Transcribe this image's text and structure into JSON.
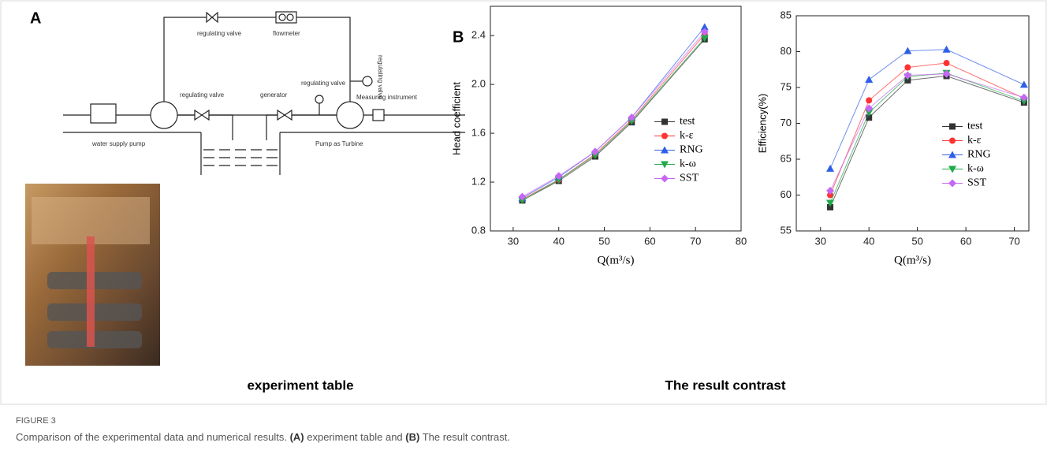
{
  "figure": {
    "panel_a": {
      "letter": "A",
      "labels": [
        "regulating valve",
        "flowmeter",
        "regulating valve",
        "regulating valve",
        "Measuring instrument",
        "regulating valve",
        "generator",
        "water supply pump",
        "Pump as Turbine"
      ],
      "caption": "experiment table"
    },
    "panel_b": {
      "letter": "B",
      "caption": "The result contrast"
    },
    "figure_label": "FIGURE 3",
    "caption": [
      "Comparison of the experimental data and numerical results. ",
      "(A)",
      " experiment table and ",
      "(B)",
      " The result contrast."
    ]
  },
  "chart_data": [
    {
      "type": "line",
      "ylabel": "Head coefficient",
      "xlabel": "Q(m³/s)",
      "x": [
        32,
        40,
        48,
        56,
        72
      ],
      "xlim": [
        25,
        80
      ],
      "xticks": [
        30,
        40,
        50,
        60,
        70,
        80
      ],
      "ylim": [
        0.8,
        2.64
      ],
      "yticks": [
        0.8,
        1.2,
        1.6,
        {
          "value": 2,
          "label": "2.0"
        },
        2.4
      ],
      "legend": "center right",
      "series": [
        {
          "name": "test",
          "color": "#333333",
          "marker": "square",
          "values": [
            1.05,
            1.21,
            1.41,
            1.69,
            2.37
          ]
        },
        {
          "name": "k-ε",
          "color": "#ff3333",
          "marker": "circle",
          "values": [
            1.06,
            1.22,
            1.43,
            1.71,
            2.41
          ]
        },
        {
          "name": "RNG",
          "color": "#2f5fe8",
          "marker": "triangle-up",
          "values": [
            1.07,
            1.24,
            1.45,
            1.73,
            2.47
          ]
        },
        {
          "name": "k-ω",
          "color": "#1faa4a",
          "marker": "triangle-down",
          "values": [
            1.05,
            1.22,
            1.42,
            1.7,
            2.38
          ]
        },
        {
          "name": "SST",
          "color": "#c766f5",
          "marker": "diamond",
          "values": [
            1.08,
            1.25,
            1.45,
            1.73,
            2.43
          ]
        }
      ]
    },
    {
      "type": "line",
      "ylabel": "Efficiency(%)",
      "xlabel": "Q(m³/s)",
      "x": [
        32,
        40,
        48,
        56,
        72
      ],
      "xlim": [
        25,
        73
      ],
      "xticks": [
        30,
        40,
        50,
        60,
        70
      ],
      "ylim": [
        55,
        85
      ],
      "yticks": [
        55,
        60,
        65,
        70,
        75,
        80,
        85
      ],
      "legend": "center right",
      "series": [
        {
          "name": "test",
          "color": "#333333",
          "marker": "square",
          "values": [
            58.3,
            70.8,
            76.0,
            76.6,
            72.9
          ]
        },
        {
          "name": "k-ε",
          "color": "#ff3333",
          "marker": "circle",
          "values": [
            60.0,
            73.2,
            77.8,
            78.4,
            73.5
          ]
        },
        {
          "name": "RNG",
          "color": "#2f5fe8",
          "marker": "triangle-up",
          "values": [
            63.7,
            76.1,
            80.1,
            80.3,
            75.4
          ]
        },
        {
          "name": "k-ω",
          "color": "#1faa4a",
          "marker": "triangle-down",
          "values": [
            58.9,
            71.5,
            76.5,
            77.0,
            73.1
          ]
        },
        {
          "name": "SST",
          "color": "#c766f5",
          "marker": "diamond",
          "values": [
            60.6,
            72.1,
            76.7,
            76.9,
            73.6
          ]
        }
      ]
    }
  ]
}
